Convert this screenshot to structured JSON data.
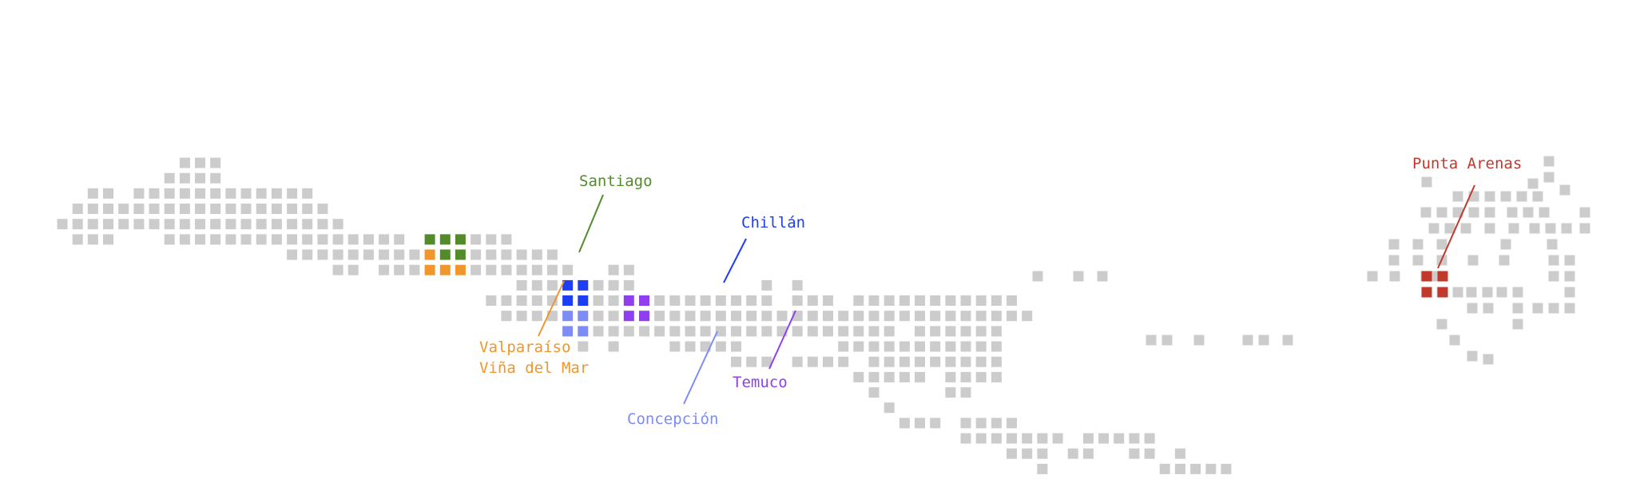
{
  "colors": {
    "background": "#ffffff",
    "land_cell": "#cccccc"
  },
  "map": {
    "description_type": "grid-cartogram",
    "cities": [
      {
        "id": "santiago",
        "label_lines": [
          "Santiago"
        ],
        "color": "#538b2b"
      },
      {
        "id": "valparaiso",
        "label_lines": [
          "Valparaíso",
          "Viña del Mar"
        ],
        "color": "#f0962d"
      },
      {
        "id": "chillan",
        "label_lines": [
          "Chillán"
        ],
        "color": "#1e3ef5"
      },
      {
        "id": "concepcion",
        "label_lines": [
          "Concepción"
        ],
        "color": "#7e8cf5"
      },
      {
        "id": "temuco",
        "label_lines": [
          "Temuco"
        ],
        "color": "#8f3ff0"
      },
      {
        "id": "punta-arenas",
        "label_lines": [
          "Punta Arenas"
        ],
        "color": "#c0392b"
      }
    ]
  }
}
